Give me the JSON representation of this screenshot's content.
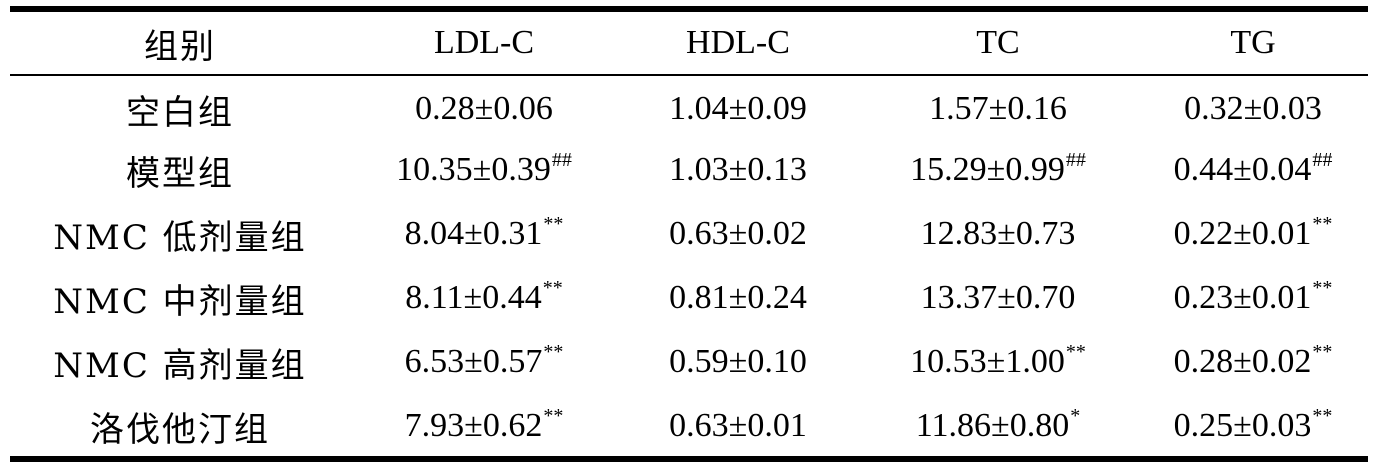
{
  "table": {
    "headers": [
      "组别",
      "LDL-C",
      "HDL-C",
      "TC",
      "TG"
    ],
    "rows": [
      {
        "group": "空白组",
        "cells": [
          {
            "v": "0.28±0.06",
            "m": ""
          },
          {
            "v": "1.04±0.09",
            "m": ""
          },
          {
            "v": "1.57±0.16",
            "m": ""
          },
          {
            "v": "0.32±0.03",
            "m": ""
          }
        ]
      },
      {
        "group": "模型组",
        "cells": [
          {
            "v": "10.35±0.39",
            "m": "##"
          },
          {
            "v": "1.03±0.13",
            "m": ""
          },
          {
            "v": "15.29±0.99",
            "m": "##"
          },
          {
            "v": "0.44±0.04",
            "m": "##"
          }
        ]
      },
      {
        "group": "NMC 低剂量组",
        "cells": [
          {
            "v": "8.04±0.31",
            "m": "**"
          },
          {
            "v": "0.63±0.02",
            "m": ""
          },
          {
            "v": "12.83±0.73",
            "m": ""
          },
          {
            "v": "0.22±0.01",
            "m": "**"
          }
        ]
      },
      {
        "group": "NMC 中剂量组",
        "cells": [
          {
            "v": "8.11±0.44",
            "m": "**"
          },
          {
            "v": "0.81±0.24",
            "m": ""
          },
          {
            "v": "13.37±0.70",
            "m": ""
          },
          {
            "v": "0.23±0.01",
            "m": "**"
          }
        ]
      },
      {
        "group": "NMC 高剂量组",
        "cells": [
          {
            "v": "6.53±0.57",
            "m": "**"
          },
          {
            "v": "0.59±0.10",
            "m": ""
          },
          {
            "v": "10.53±1.00",
            "m": "**"
          },
          {
            "v": "0.28±0.02",
            "m": "**"
          }
        ]
      },
      {
        "group": "洛伐他汀组",
        "cells": [
          {
            "v": "7.93±0.62",
            "m": "**"
          },
          {
            "v": "0.63±0.01",
            "m": ""
          },
          {
            "v": "11.86±0.80",
            "m": "*"
          },
          {
            "v": "0.25±0.03",
            "m": "**"
          }
        ]
      }
    ]
  }
}
